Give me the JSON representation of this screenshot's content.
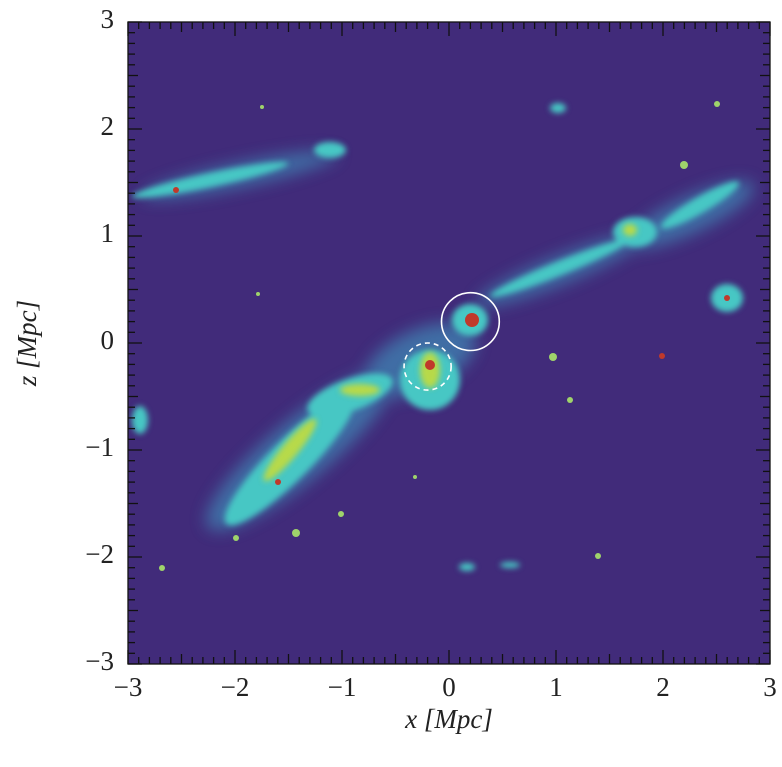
{
  "chart_data": {
    "type": "image",
    "xlabel": "x [Mpc]",
    "ylabel": "z [Mpc]",
    "xlim": [
      -3,
      3
    ],
    "ylim": [
      -3,
      3
    ],
    "xticks": [
      {
        "value": -3,
        "label": "−3"
      },
      {
        "value": -2,
        "label": "−2"
      },
      {
        "value": -1,
        "label": "−1"
      },
      0,
      1,
      2,
      3
    ],
    "yticks": [
      {
        "value": -3,
        "label": "−3"
      },
      {
        "value": -2,
        "label": "−2"
      },
      {
        "value": -1,
        "label": "−1"
      },
      0,
      1,
      2,
      3
    ],
    "minor_ticks": true,
    "background": "#412b7a",
    "circles": [
      {
        "x": 0.2,
        "y": 0.2,
        "r": 0.27,
        "style": "solid"
      },
      {
        "x": -0.2,
        "y": -0.22,
        "r": 0.22,
        "style": "dashed"
      }
    ]
  }
}
